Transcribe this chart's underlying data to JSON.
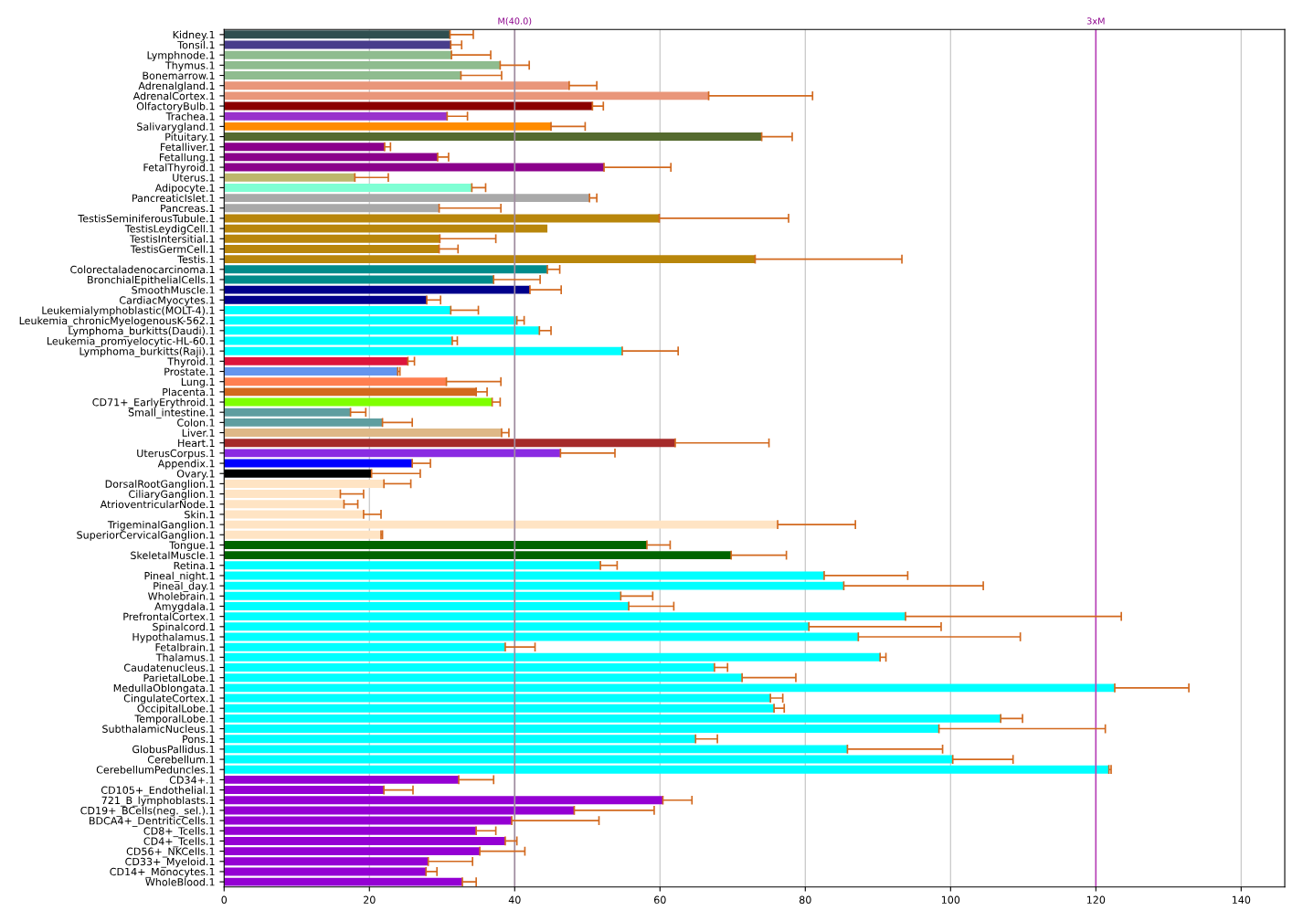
{
  "chart_data": {
    "type": "bar",
    "orientation": "horizontal",
    "grid": "x",
    "categories": [
      "Kidney.1",
      "Tonsil.1",
      "Lymphnode.1",
      "Thymus.1",
      "Bonemarrow.1",
      "Adrenalgland.1",
      "AdrenalCortex.1",
      "OlfactoryBulb.1",
      "Trachea.1",
      "Salivarygland.1",
      "Pituitary.1",
      "Fetalliver.1",
      "Fetallung.1",
      "FetalThyroid.1",
      "Uterus.1",
      "Adipocyte.1",
      "PancreaticIslet.1",
      "Pancreas.1",
      "TestisSeminiferousTubule.1",
      "TestisLeydigCell.1",
      "TestisIntersitial.1",
      "TestisGermCell.1",
      "Testis.1",
      "Colorectaladenocarcinoma.1",
      "BronchialEpithelialCells.1",
      "SmoothMuscle.1",
      "CardiacMyocytes.1",
      "Leukemialymphoblastic(MOLT-4).1",
      "Leukemia_chronicMyelogenousK-562.1",
      "Lymphoma_burkitts(Daudi).1",
      "Leukemia_promyelocytic-HL-60.1",
      "Lymphoma_burkitts(Raji).1",
      "Thyroid.1",
      "Prostate.1",
      "Lung.1",
      "Placenta.1",
      "CD71+_EarlyErythroid.1",
      "Small_intestine.1",
      "Colon.1",
      "Liver.1",
      "Heart.1",
      "UterusCorpus.1",
      "Appendix.1",
      "Ovary.1",
      "DorsalRootGanglion.1",
      "CiliaryGanglion.1",
      "AtrioventricularNode.1",
      "Skin.1",
      "TrigeminalGanglion.1",
      "SuperiorCervicalGanglion.1",
      "Tongue.1",
      "SkeletalMuscle.1",
      "Retina.1",
      "Pineal_night.1",
      "Pineal_day.1",
      "Wholebrain.1",
      "Amygdala.1",
      "PrefrontalCortex.1",
      "Spinalcord.1",
      "Hypothalamus.1",
      "Fetalbrain.1",
      "Thalamus.1",
      "Caudatenucleus.1",
      "ParietalLobe.1",
      "MedullaOblongata.1",
      "CingulateCortex.1",
      "OccipitalLobe.1",
      "TemporalLobe.1",
      "SubthalamicNucleus.1",
      "Pons.1",
      "GlobusPallidus.1",
      "Cerebellum.1",
      "CerebellumPeduncles.1",
      "CD34+.1",
      "CD105+_Endothelial.1",
      "721_B_lymphoblasts.1",
      "CD19+_BCells(neg._sel.).1",
      "BDCA4+_DentriticCells.1",
      "CD8+_Tcells.1",
      "CD4+_Tcells.1",
      "CD56+_NKCells.1",
      "CD33+_Myeloid.1",
      "CD14+_Monocytes.1",
      "WholeBlood.1"
    ],
    "values": [
      31.1,
      31.2,
      31.3,
      38.0,
      32.6,
      47.5,
      66.7,
      50.7,
      30.7,
      45.0,
      74.0,
      22.1,
      29.4,
      52.3,
      18.0,
      34.1,
      50.3,
      29.6,
      59.9,
      44.5,
      29.7,
      29.6,
      73.1,
      44.5,
      37.1,
      42.1,
      27.9,
      31.2,
      40.3,
      43.4,
      31.4,
      54.8,
      25.3,
      23.9,
      30.6,
      34.7,
      36.9,
      17.4,
      21.8,
      38.2,
      62.1,
      46.3,
      25.9,
      20.3,
      22.0,
      16.0,
      16.5,
      19.2,
      76.2,
      21.6,
      58.2,
      69.8,
      51.8,
      82.6,
      85.3,
      54.6,
      55.7,
      93.8,
      80.5,
      87.3,
      38.7,
      90.3,
      67.5,
      71.3,
      122.6,
      75.2,
      75.7,
      106.9,
      98.4,
      64.9,
      85.8,
      100.3,
      121.8,
      32.3,
      22.0,
      60.4,
      48.2,
      39.6,
      34.7,
      38.7,
      35.2,
      28.1,
      27.8,
      32.8
    ],
    "errors": [
      [
        31.1,
        34.3
      ],
      [
        31.2,
        32.7
      ],
      [
        31.3,
        36.7
      ],
      [
        38.0,
        42.0
      ],
      [
        32.6,
        38.2
      ],
      [
        47.5,
        51.3
      ],
      [
        66.7,
        81.0
      ],
      [
        50.7,
        52.2
      ],
      [
        30.7,
        33.5
      ],
      [
        45.0,
        49.7
      ],
      [
        74.0,
        78.2
      ],
      [
        22.1,
        22.9
      ],
      [
        29.4,
        30.9
      ],
      [
        52.3,
        61.5
      ],
      [
        18.0,
        22.6
      ],
      [
        34.1,
        36.0
      ],
      [
        50.3,
        51.3
      ],
      [
        29.6,
        38.1
      ],
      [
        59.9,
        77.7
      ],
      null,
      [
        29.7,
        37.4
      ],
      [
        29.6,
        32.2
      ],
      [
        73.1,
        93.3
      ],
      [
        44.5,
        46.2
      ],
      [
        37.1,
        43.5
      ],
      [
        42.1,
        46.4
      ],
      [
        27.9,
        29.8
      ],
      [
        31.2,
        35.0
      ],
      [
        40.3,
        41.3
      ],
      [
        43.4,
        45.0
      ],
      [
        31.4,
        32.1
      ],
      [
        54.8,
        62.5
      ],
      [
        25.3,
        26.2
      ],
      [
        23.9,
        24.2
      ],
      [
        30.6,
        38.1
      ],
      [
        34.7,
        36.2
      ],
      [
        36.9,
        38.0
      ],
      [
        17.4,
        19.5
      ],
      [
        21.8,
        25.9
      ],
      [
        38.2,
        39.2
      ],
      [
        62.1,
        75.0
      ],
      [
        46.3,
        53.8
      ],
      [
        25.9,
        28.4
      ],
      [
        20.3,
        27.0
      ],
      [
        22.0,
        25.7
      ],
      [
        16.0,
        19.2
      ],
      [
        16.5,
        18.4
      ],
      [
        19.2,
        21.6
      ],
      [
        76.2,
        86.9
      ],
      [
        21.6,
        21.8
      ],
      [
        58.2,
        61.4
      ],
      [
        69.8,
        77.4
      ],
      [
        51.8,
        54.1
      ],
      [
        82.6,
        94.1
      ],
      [
        85.3,
        104.5
      ],
      [
        54.6,
        59.0
      ],
      [
        55.7,
        61.9
      ],
      [
        93.8,
        123.5
      ],
      [
        80.5,
        98.7
      ],
      [
        87.3,
        109.6
      ],
      [
        38.7,
        42.8
      ],
      [
        90.3,
        91.1
      ],
      [
        67.5,
        69.3
      ],
      [
        71.3,
        78.7
      ],
      [
        122.6,
        132.8
      ],
      [
        75.2,
        76.9
      ],
      [
        75.7,
        77.1
      ],
      [
        106.9,
        109.9
      ],
      [
        98.4,
        121.3
      ],
      [
        64.9,
        67.9
      ],
      [
        85.8,
        98.9
      ],
      [
        100.3,
        108.6
      ],
      [
        121.8,
        122.1
      ],
      [
        32.3,
        37.1
      ],
      [
        22.0,
        26.0
      ],
      [
        60.4,
        64.4
      ],
      [
        48.2,
        59.2
      ],
      [
        39.6,
        51.6
      ],
      [
        34.7,
        37.4
      ],
      [
        38.7,
        40.3
      ],
      [
        35.2,
        41.4
      ],
      [
        28.1,
        34.2
      ],
      [
        27.8,
        29.3
      ],
      [
        32.8,
        34.7
      ]
    ],
    "colors": [
      "#2f4f4f",
      "#483d8b",
      "#8fbc8f",
      "#8fbc8f",
      "#8fbc8f",
      "#e9967a",
      "#e9967a",
      "#8b0000",
      "#9932cc",
      "#ff8c00",
      "#556b2f",
      "#8b008b",
      "#8b008b",
      "#8b008b",
      "#bdb76b",
      "#7fffd4",
      "#a9a9a9",
      "#a9a9a9",
      "#b8860b",
      "#b8860b",
      "#b8860b",
      "#b8860b",
      "#b8860b",
      "#008b8b",
      "#008b8b",
      "#00008b",
      "#00008b",
      "#00ffff",
      "#00ffff",
      "#00ffff",
      "#00ffff",
      "#00ffff",
      "#dc143c",
      "#6495ed",
      "#ff7f50",
      "#d2691e",
      "#7fff00",
      "#5f9ea0",
      "#5f9ea0",
      "#deb887",
      "#a52a2a",
      "#8a2be2",
      "#0000ff",
      "#000000",
      "#ffe4c4",
      "#ffe4c4",
      "#ffe4c4",
      "#ffe4c4",
      "#ffe4c4",
      "#ffe4c4",
      "#006400",
      "#006400",
      "#00ffff",
      "#00ffff",
      "#00ffff",
      "#00ffff",
      "#00ffff",
      "#00ffff",
      "#00ffff",
      "#00ffff",
      "#00ffff",
      "#00ffff",
      "#00ffff",
      "#00ffff",
      "#00ffff",
      "#00ffff",
      "#00ffff",
      "#00ffff",
      "#00ffff",
      "#00ffff",
      "#00ffff",
      "#00ffff",
      "#00ffff",
      "#9400d3",
      "#9400d3",
      "#9400d3",
      "#9400d3",
      "#9400d3",
      "#9400d3",
      "#9400d3",
      "#9400d3",
      "#9400d3",
      "#9400d3",
      "#9400d3"
    ],
    "xlim": [
      0,
      146
    ],
    "xticks": [
      0,
      20,
      40,
      60,
      80,
      100,
      120,
      140
    ],
    "ref_lines": [
      {
        "axis": "x",
        "value": 40,
        "label": "M(40.0)",
        "color": "#a08ca0"
      },
      {
        "axis": "x",
        "value": 120,
        "label": "3xM",
        "color": "#bb44bb"
      }
    ]
  }
}
